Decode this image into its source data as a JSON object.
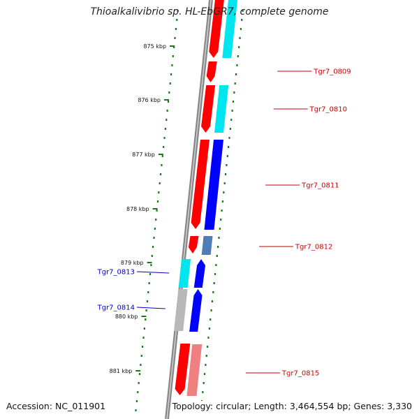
{
  "title": "Thioalkalivibrio sp. HL-EbGR7, complete genome",
  "scale_labels": [
    "875 kbp",
    "876 kbp",
    "877 kbp",
    "878 kbp",
    "879 kbp",
    "880 kbp",
    "881 kbp"
  ],
  "genes_right": [
    "Tgr7_0809",
    "Tgr7_0810",
    "Tgr7_0811",
    "Tgr7_0812",
    "Tgr7_0815"
  ],
  "genes_left": [
    "Tgr7_0813",
    "Tgr7_0814"
  ],
  "footer": {
    "accession": "Accession: NC_011901",
    "topology": "Topology: circular; Length: 3,464,554 bp; Genes: 3,330"
  },
  "colors": {
    "cds_forward": "#ff0000",
    "cds_forward_light": "#f08080",
    "feature_cyan": "#00e5ee",
    "feature_blue": "#0000ff",
    "feature_steelblue": "#4f7db5",
    "feature_grey": "#b8b8b8",
    "tick_green": "#1a7a1a",
    "label_right": "#cc0000",
    "label_left": "#0000cc",
    "backbone": "#888888"
  }
}
